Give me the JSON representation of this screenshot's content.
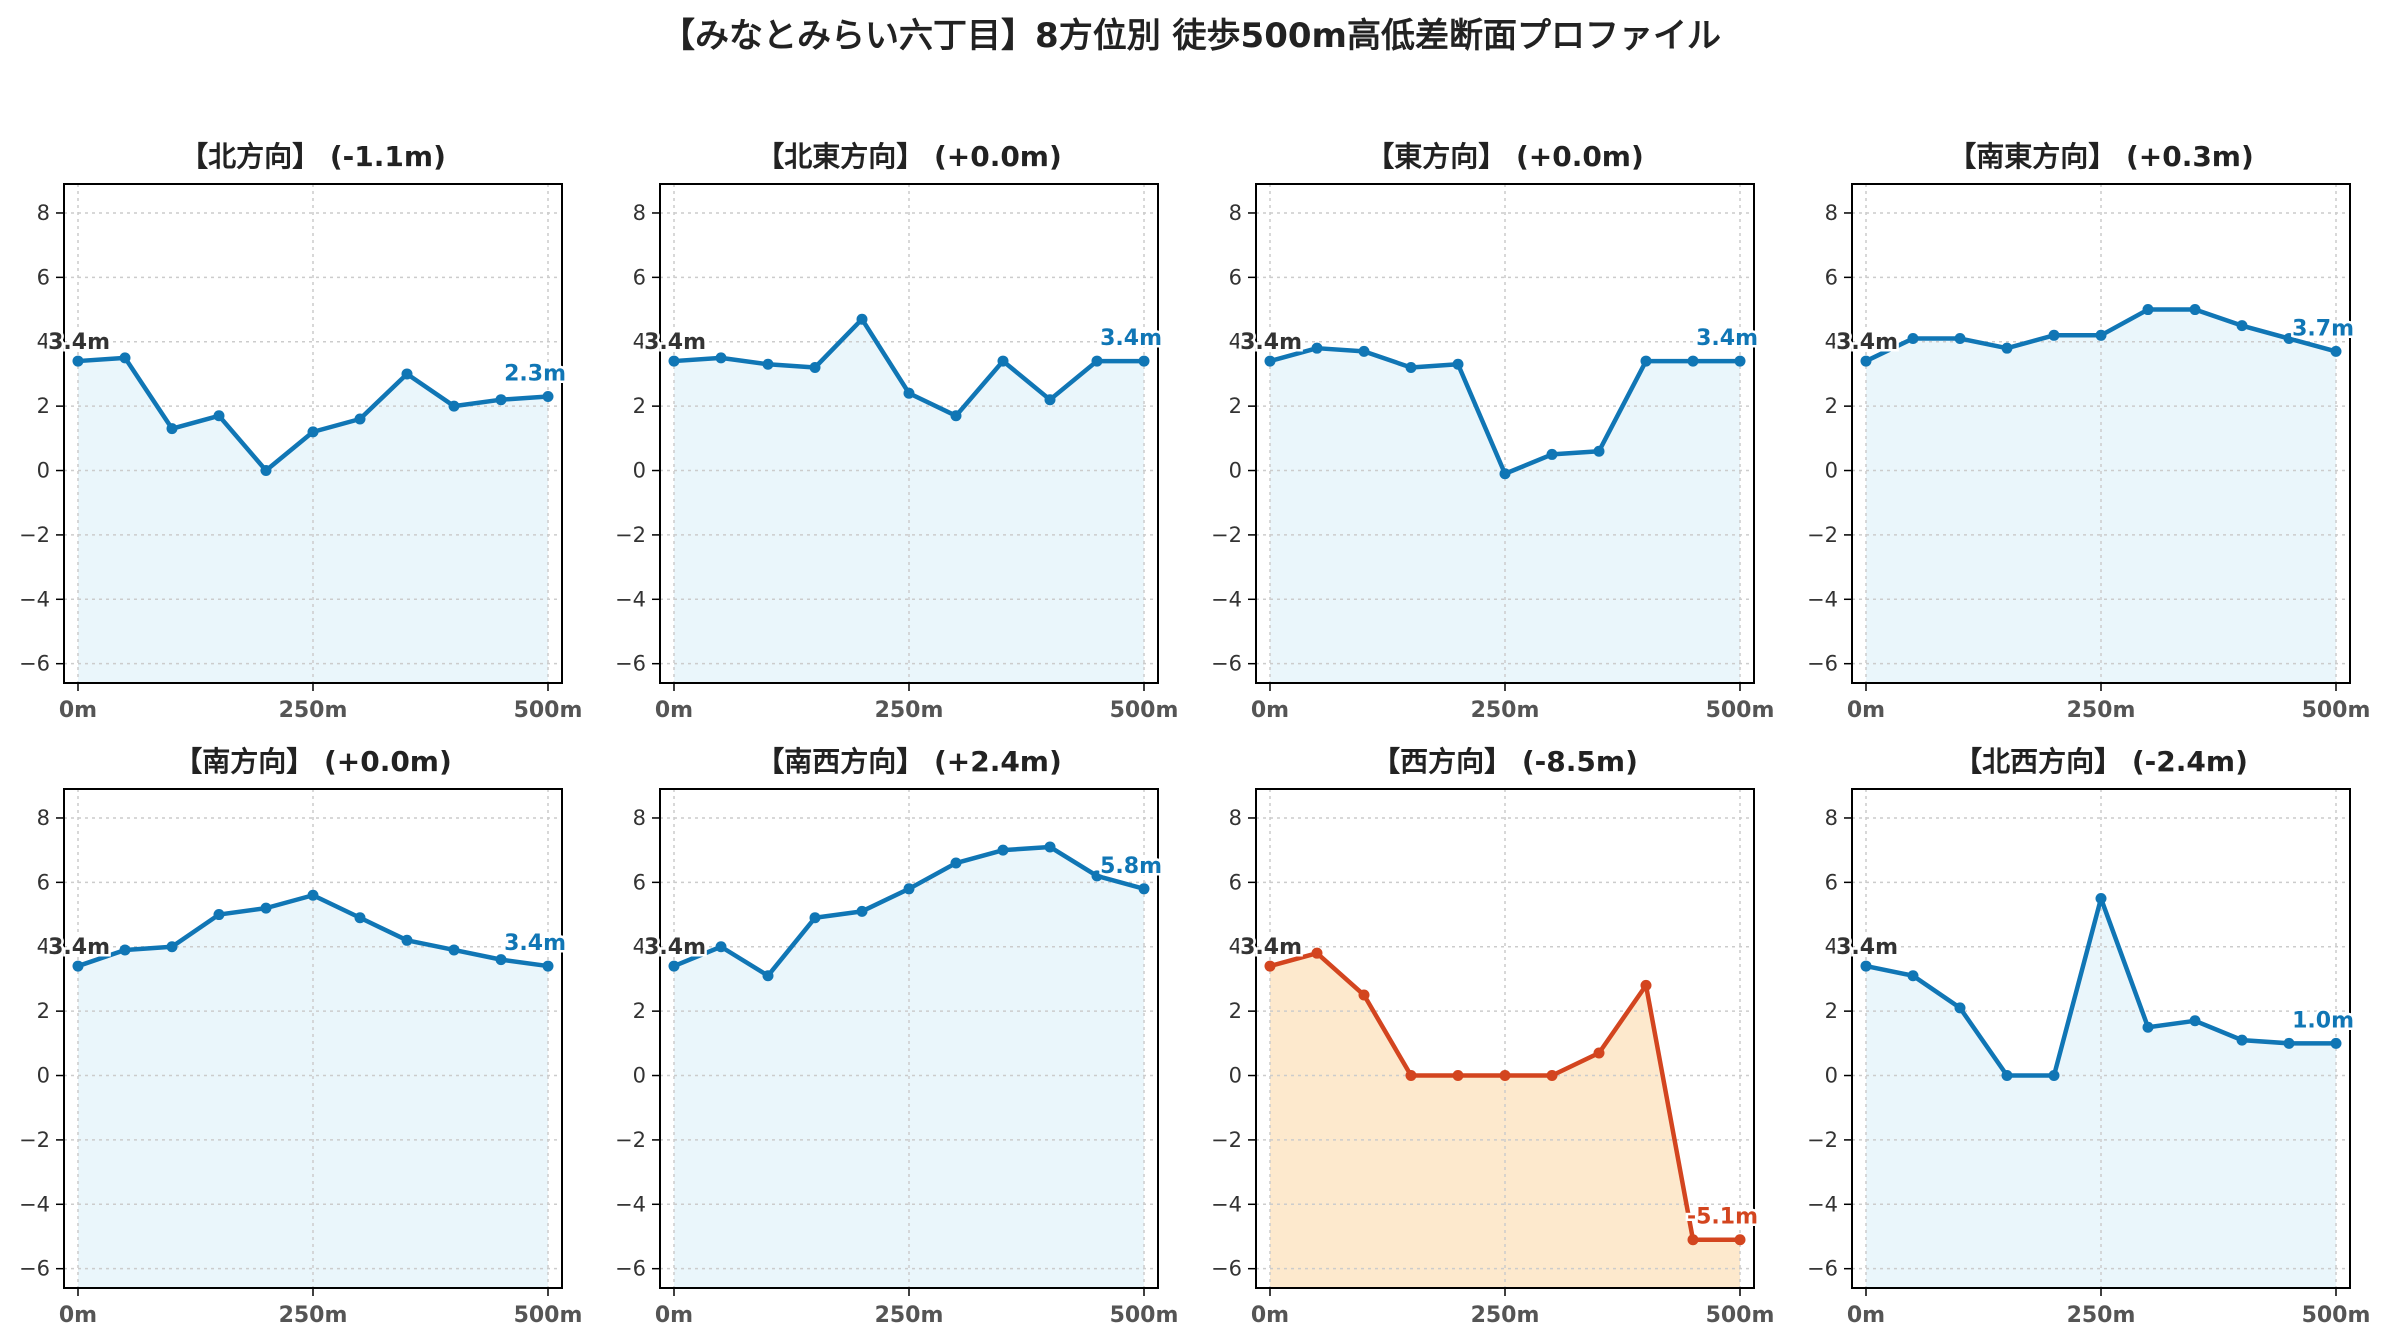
{
  "title": "【みなとみらい六丁目】8方位別 徒歩500m高低差断面プロファイル",
  "colors": {
    "normal_line": "#1076b5",
    "normal_fill": "#eaf6fb",
    "alert_line": "#d3451f",
    "alert_fill": "#fde9cd",
    "start_label": "#333333",
    "grid": "#cccccc"
  },
  "chart_data": [
    {
      "type": "area",
      "title": "【北方向】 (-1.1m)",
      "x": [
        0,
        50,
        100,
        150,
        200,
        250,
        300,
        350,
        400,
        450,
        500
      ],
      "y": [
        3.4,
        3.5,
        1.3,
        1.7,
        0.0,
        1.2,
        1.6,
        3.0,
        2.0,
        2.2,
        2.3
      ],
      "start_label": "3.4m",
      "end_label": "2.3m",
      "highlight": false,
      "xticks": [
        "0m",
        "250m",
        "500m"
      ],
      "yticks": [
        "−6",
        "−4",
        "−2",
        "0",
        "2",
        "4",
        "6",
        "8"
      ],
      "xlim": [
        0,
        500
      ],
      "ylim": [
        -6.6,
        8.9
      ],
      "grid": true
    },
    {
      "type": "area",
      "title": "【北東方向】 (+0.0m)",
      "x": [
        0,
        50,
        100,
        150,
        200,
        250,
        300,
        350,
        400,
        450,
        500
      ],
      "y": [
        3.4,
        3.5,
        3.3,
        3.2,
        4.7,
        2.4,
        1.7,
        3.4,
        2.2,
        3.4,
        3.4
      ],
      "start_label": "3.4m",
      "end_label": "3.4m",
      "highlight": false,
      "xticks": [
        "0m",
        "250m",
        "500m"
      ],
      "yticks": [
        "−6",
        "−4",
        "−2",
        "0",
        "2",
        "4",
        "6",
        "8"
      ],
      "xlim": [
        0,
        500
      ],
      "ylim": [
        -6.6,
        8.9
      ],
      "grid": true
    },
    {
      "type": "area",
      "title": "【東方向】 (+0.0m)",
      "x": [
        0,
        50,
        100,
        150,
        200,
        250,
        300,
        350,
        400,
        450,
        500
      ],
      "y": [
        3.4,
        3.8,
        3.7,
        3.2,
        3.3,
        -0.1,
        0.5,
        0.6,
        3.4,
        3.4,
        3.4
      ],
      "start_label": "3.4m",
      "end_label": "3.4m",
      "highlight": false,
      "xticks": [
        "0m",
        "250m",
        "500m"
      ],
      "yticks": [
        "−6",
        "−4",
        "−2",
        "0",
        "2",
        "4",
        "6",
        "8"
      ],
      "xlim": [
        0,
        500
      ],
      "ylim": [
        -6.6,
        8.9
      ],
      "grid": true
    },
    {
      "type": "area",
      "title": "【南東方向】 (+0.3m)",
      "x": [
        0,
        50,
        100,
        150,
        200,
        250,
        300,
        350,
        400,
        450,
        500
      ],
      "y": [
        3.4,
        4.1,
        4.1,
        3.8,
        4.2,
        4.2,
        5.0,
        5.0,
        4.5,
        4.1,
        3.7
      ],
      "start_label": "3.4m",
      "end_label": "3.7m",
      "highlight": false,
      "xticks": [
        "0m",
        "250m",
        "500m"
      ],
      "yticks": [
        "−6",
        "−4",
        "−2",
        "0",
        "2",
        "4",
        "6",
        "8"
      ],
      "xlim": [
        0,
        500
      ],
      "ylim": [
        -6.6,
        8.9
      ],
      "grid": true
    },
    {
      "type": "area",
      "title": "【南方向】 (+0.0m)",
      "x": [
        0,
        50,
        100,
        150,
        200,
        250,
        300,
        350,
        400,
        450,
        500
      ],
      "y": [
        3.4,
        3.9,
        4.0,
        5.0,
        5.2,
        5.6,
        4.9,
        4.2,
        3.9,
        3.6,
        3.4
      ],
      "start_label": "3.4m",
      "end_label": "3.4m",
      "highlight": false,
      "xticks": [
        "0m",
        "250m",
        "500m"
      ],
      "yticks": [
        "−6",
        "−4",
        "−2",
        "0",
        "2",
        "4",
        "6",
        "8"
      ],
      "xlim": [
        0,
        500
      ],
      "ylim": [
        -6.6,
        8.9
      ],
      "grid": true
    },
    {
      "type": "area",
      "title": "【南西方向】 (+2.4m)",
      "x": [
        0,
        50,
        100,
        150,
        200,
        250,
        300,
        350,
        400,
        450,
        500
      ],
      "y": [
        3.4,
        4.0,
        3.1,
        4.9,
        5.1,
        5.8,
        6.6,
        7.0,
        7.1,
        6.2,
        5.8
      ],
      "start_label": "3.4m",
      "end_label": "5.8m",
      "highlight": false,
      "xticks": [
        "0m",
        "250m",
        "500m"
      ],
      "yticks": [
        "−6",
        "−4",
        "−2",
        "0",
        "2",
        "4",
        "6",
        "8"
      ],
      "xlim": [
        0,
        500
      ],
      "ylim": [
        -6.6,
        8.9
      ],
      "grid": true
    },
    {
      "type": "area",
      "title": "【西方向】 (-8.5m)",
      "x": [
        0,
        50,
        100,
        150,
        200,
        250,
        300,
        350,
        400,
        450,
        500
      ],
      "y": [
        3.4,
        3.8,
        2.5,
        0.0,
        0.0,
        0.0,
        0.0,
        0.7,
        2.8,
        -5.1,
        -5.1
      ],
      "start_label": "3.4m",
      "end_label": "-5.1m",
      "highlight": true,
      "xticks": [
        "0m",
        "250m",
        "500m"
      ],
      "yticks": [
        "−6",
        "−4",
        "−2",
        "0",
        "2",
        "4",
        "6",
        "8"
      ],
      "xlim": [
        0,
        500
      ],
      "ylim": [
        -6.6,
        8.9
      ],
      "grid": true
    },
    {
      "type": "area",
      "title": "【北西方向】 (-2.4m)",
      "x": [
        0,
        50,
        100,
        150,
        200,
        250,
        300,
        350,
        400,
        450,
        500
      ],
      "y": [
        3.4,
        3.1,
        2.1,
        0.0,
        0.0,
        5.5,
        1.5,
        1.7,
        1.1,
        1.0,
        1.0
      ],
      "start_label": "3.4m",
      "end_label": "1.0m",
      "highlight": false,
      "xticks": [
        "0m",
        "250m",
        "500m"
      ],
      "yticks": [
        "−6",
        "−4",
        "−2",
        "0",
        "2",
        "4",
        "6",
        "8"
      ],
      "xlim": [
        0,
        500
      ],
      "ylim": [
        -6.6,
        8.9
      ],
      "grid": true
    }
  ]
}
